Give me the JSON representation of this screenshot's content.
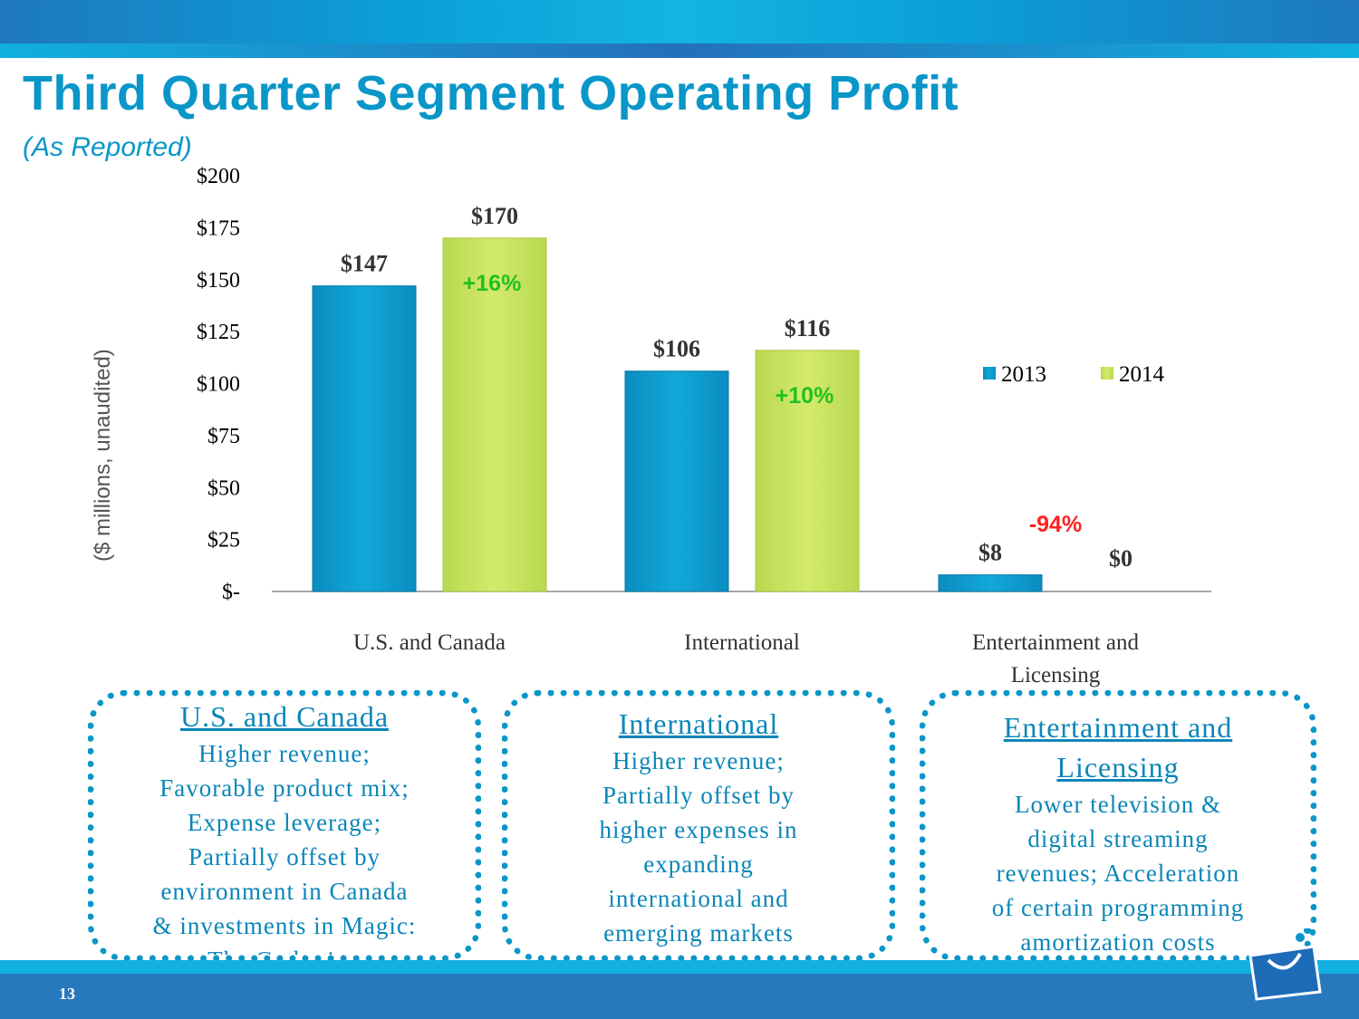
{
  "header": {
    "title": "Third Quarter Segment Operating Profit",
    "subtitle": "(As Reported)"
  },
  "chart_data": {
    "type": "bar",
    "ylabel": "($ millions, unaudited)",
    "ylim": [
      0,
      200
    ],
    "yticks": [
      {
        "v": 200,
        "l": "$200"
      },
      {
        "v": 175,
        "l": "$175"
      },
      {
        "v": 150,
        "l": "$150"
      },
      {
        "v": 125,
        "l": "$125"
      },
      {
        "v": 100,
        "l": "$100"
      },
      {
        "v": 75,
        "l": "$75"
      },
      {
        "v": 50,
        "l": "$50"
      },
      {
        "v": 25,
        "l": "$25"
      },
      {
        "v": 0,
        "l": "$-"
      }
    ],
    "categories": [
      "U.S. and Canada",
      "International",
      "Entertainment and Licensing"
    ],
    "series": [
      {
        "name": "2013",
        "values": [
          147,
          106,
          8
        ],
        "labels": [
          "$147",
          "$106",
          "$8"
        ],
        "color": "#0a9fd0"
      },
      {
        "name": "2014",
        "values": [
          170,
          116,
          0
        ],
        "labels": [
          "$170",
          "$116",
          "$0"
        ],
        "color": "#c8e060"
      }
    ],
    "changes": [
      {
        "text": "+16%",
        "color": "#22c022"
      },
      {
        "text": "+10%",
        "color": "#22c022"
      },
      {
        "text": "-94%",
        "color": "#ff2020"
      }
    ],
    "legend": "right",
    "grid": false
  },
  "boxes": [
    {
      "heading": "U.S. and Canada",
      "lines": [
        "Higher revenue;",
        "Favorable product mix;",
        "Expense leverage;",
        "Partially offset by",
        "environment in Canada",
        "& investments in Magic:",
        "The Gathering"
      ]
    },
    {
      "heading": "International",
      "lines": [
        "Higher revenue;",
        "Partially offset by",
        "higher expenses in",
        "expanding",
        "international and",
        "emerging markets"
      ]
    },
    {
      "heading": "Entertainment and Licensing",
      "lines": [
        "Lower television &",
        "digital streaming",
        "revenues; Acceleration",
        "of certain programming",
        "amortization costs"
      ]
    }
  ],
  "footer": {
    "page": "13"
  }
}
